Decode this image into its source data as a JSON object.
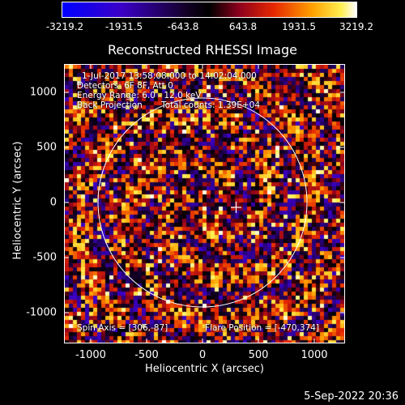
{
  "colorbar": {
    "ticks": [
      "-3219.2",
      "-1931.5",
      "-643.8",
      "643.8",
      "1931.5",
      "3219.2"
    ]
  },
  "title": "Reconstructed RHESSI Image",
  "info": {
    "line1": "1-Jul-2017 13:58:08.000 to 14:02:04.000",
    "line2": "Detectors: 6F 8F, Att 0",
    "line3": "Energy Range: 6.0 - 12.0 keV",
    "line4_left": "Back Projection",
    "line4_right": "Total counts: 1.39E+04",
    "spin_axis": "Spin Axis = [306,-87]",
    "flare_position": "Flare Position = [-470,374]"
  },
  "axes": {
    "xlabel": "Heliocentric X (arcsec)",
    "ylabel": "Heliocentric Y (arcsec)",
    "xticks": [
      "-1000",
      "-500",
      "0",
      "500",
      "1000"
    ],
    "yticks": [
      "1000",
      "500",
      "0",
      "-500",
      "-1000"
    ]
  },
  "footer": {
    "timestamp": "5-Sep-2022 20:36"
  }
}
